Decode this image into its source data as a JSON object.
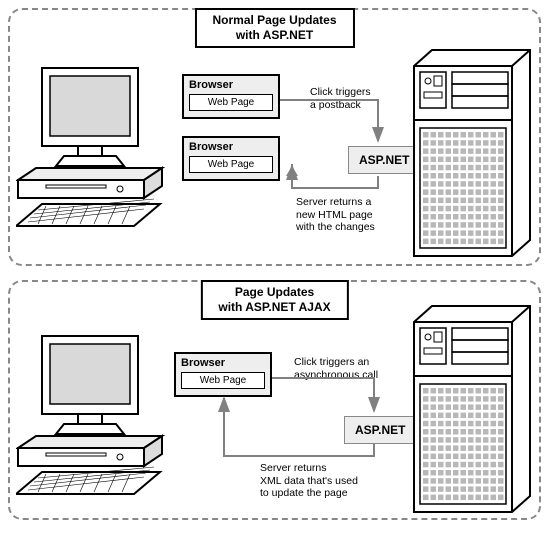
{
  "colors": {
    "dash_border": "#888888",
    "fill_grey": "#eeeeee",
    "line": "#808080",
    "black": "#000000",
    "white": "#ffffff"
  },
  "top": {
    "title_line1": "Normal Page Updates",
    "title_line2": "with ASP.NET",
    "browser1": {
      "label": "Browser",
      "page": "Web Page"
    },
    "browser2": {
      "label": "Browser",
      "page": "Web Page"
    },
    "aspnet": "ASP.NET",
    "ann_request_l1": "Click triggers",
    "ann_request_l2": "a postback",
    "ann_response_l1": "Server returns a",
    "ann_response_l2": "new HTML page",
    "ann_response_l3": "with the changes"
  },
  "bot": {
    "title_line1": "Page Updates",
    "title_line2": "with  ASP.NET AJAX",
    "browser": {
      "label": "Browser",
      "page": "Web Page"
    },
    "aspnet": "ASP.NET",
    "ann_request_l1": "Click triggers an",
    "ann_request_l2": "asynchronous call",
    "ann_response_l1": "Server returns",
    "ann_response_l2": "XML data that's used",
    "ann_response_l3": "to update the page"
  }
}
